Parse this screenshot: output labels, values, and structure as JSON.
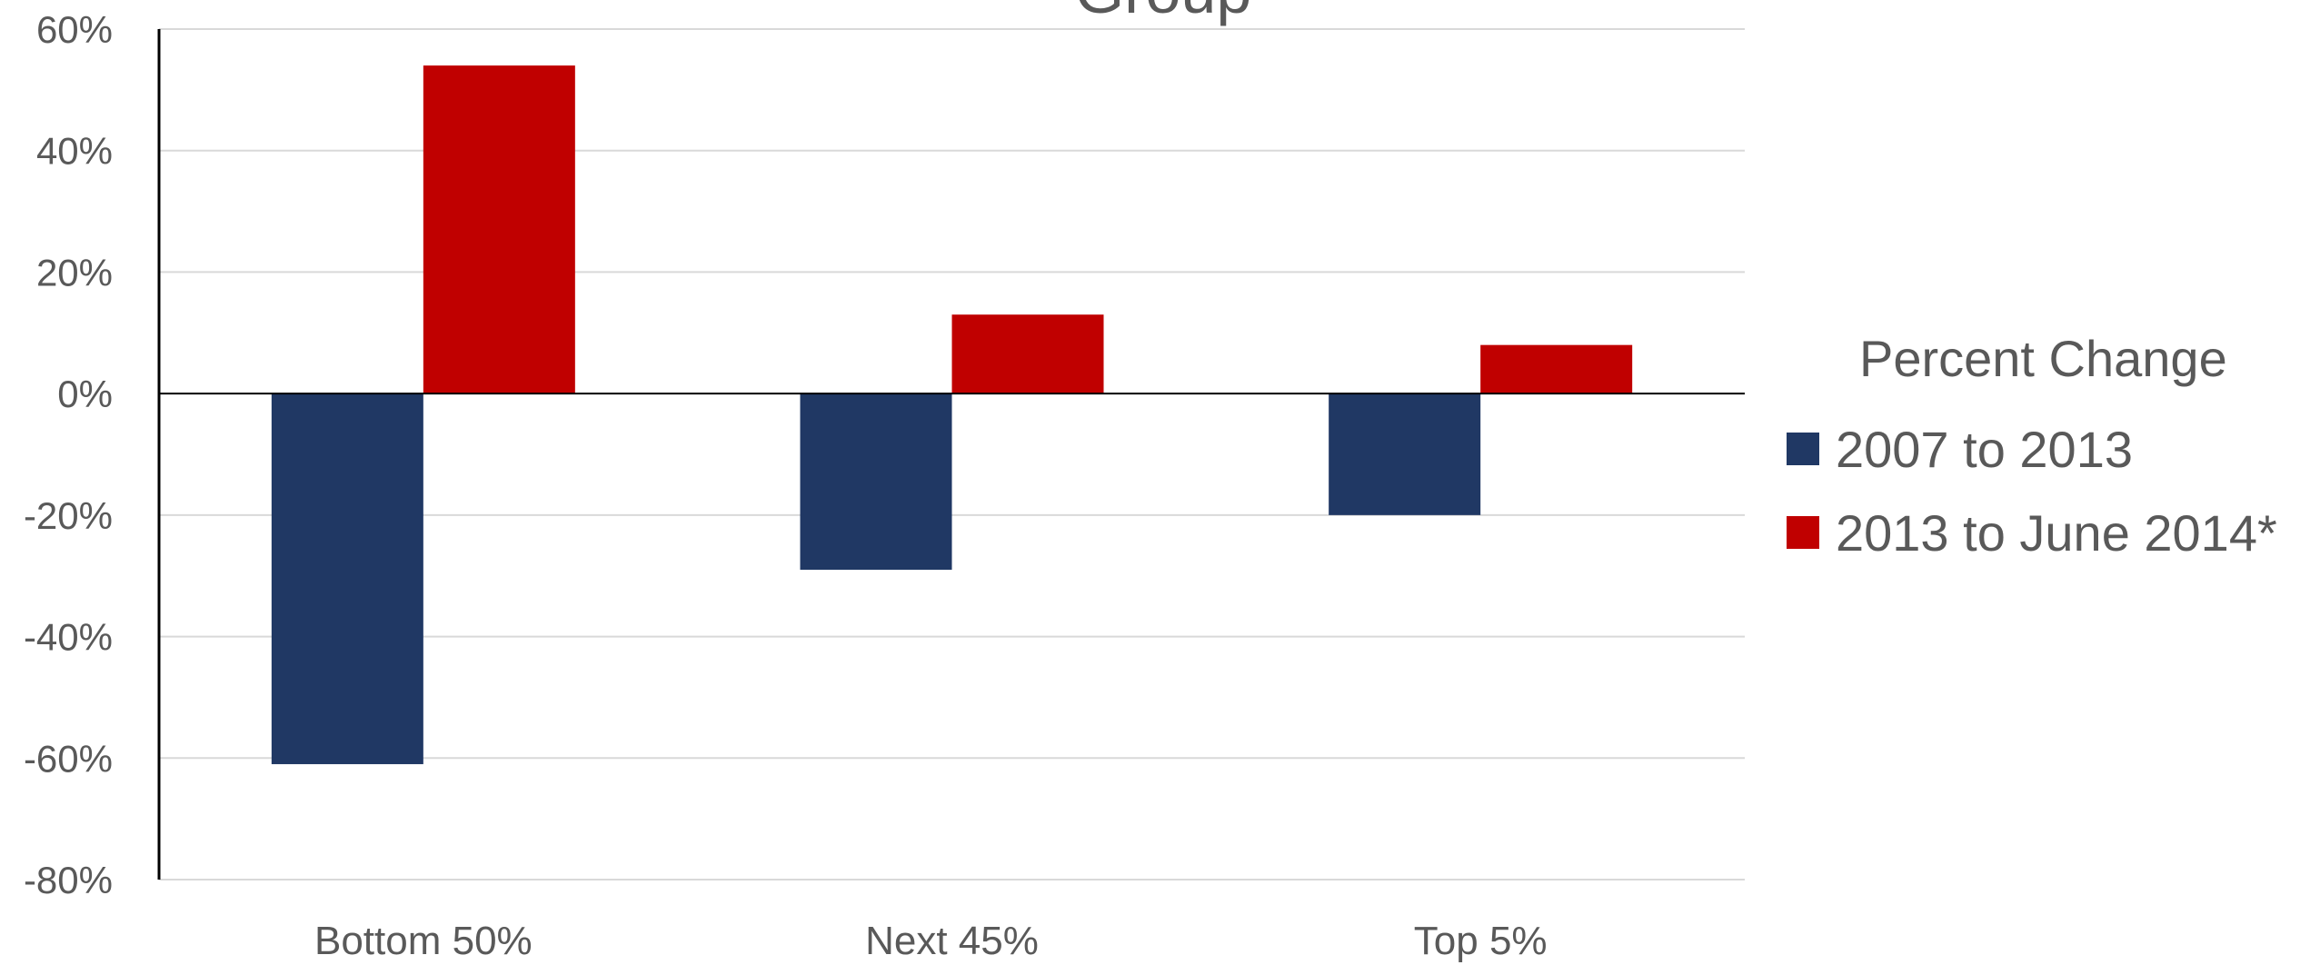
{
  "chart_data": {
    "type": "bar",
    "title": "Group",
    "categories": [
      "Bottom 50%",
      "Next 45%",
      "Top 5%"
    ],
    "series": [
      {
        "name": "2007 to 2013",
        "values": [
          -61,
          -29,
          -20
        ],
        "color": "#203864"
      },
      {
        "name": "2013 to June 2014*",
        "values": [
          54,
          13,
          8
        ],
        "color": "#C00000"
      }
    ],
    "ylim": [
      -80,
      60
    ],
    "yticks": [
      60,
      40,
      20,
      0,
      -20,
      -40,
      -60,
      -80
    ],
    "ytick_labels": [
      "60%",
      "40%",
      "20%",
      "0%",
      "-20%",
      "-40%",
      "-60%",
      "-80%"
    ],
    "grid": true,
    "legend": {
      "title": "Percent Change",
      "position": "right"
    }
  }
}
